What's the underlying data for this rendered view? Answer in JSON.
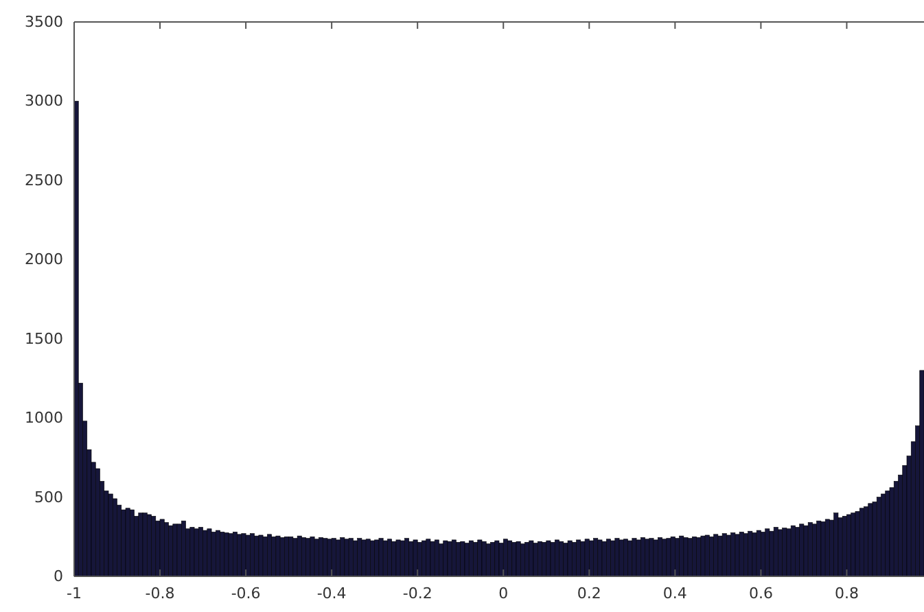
{
  "chart_data": {
    "type": "histogram",
    "color": "#16163a",
    "bins": [
      -1,
      -0.99,
      -0.98,
      -0.97,
      -0.96,
      -0.95,
      -0.94,
      -0.93,
      -0.92,
      -0.91,
      -0.9,
      -0.89,
      -0.88,
      -0.87,
      -0.86,
      -0.85,
      -0.84,
      -0.83,
      -0.82,
      -0.81,
      -0.8,
      -0.79,
      -0.78,
      -0.77,
      -0.76,
      -0.75,
      -0.74,
      -0.73,
      -0.72,
      -0.71,
      -0.7,
      -0.69,
      -0.68,
      -0.67,
      -0.66,
      -0.65,
      -0.64,
      -0.63,
      -0.62,
      -0.61,
      -0.6,
      -0.59,
      -0.58,
      -0.57,
      -0.56,
      -0.55,
      -0.54,
      -0.53,
      -0.52,
      -0.51,
      -0.5,
      -0.49,
      -0.48,
      -0.47,
      -0.46,
      -0.45,
      -0.44,
      -0.43,
      -0.42,
      -0.41,
      -0.4,
      -0.39,
      -0.38,
      -0.37,
      -0.36,
      -0.35,
      -0.34,
      -0.33,
      -0.32,
      -0.31,
      -0.3,
      -0.29,
      -0.28,
      -0.27,
      -0.26,
      -0.25,
      -0.24,
      -0.23,
      -0.22,
      -0.21,
      -0.2,
      -0.19,
      -0.18,
      -0.17,
      -0.16,
      -0.15,
      -0.14,
      -0.13,
      -0.12,
      -0.11,
      -0.1,
      -0.09,
      -0.08,
      -0.07,
      -0.06,
      -0.05,
      -0.04,
      -0.03,
      -0.02,
      -0.01,
      0,
      0.01,
      0.02,
      0.03,
      0.04,
      0.05,
      0.06,
      0.07,
      0.08,
      0.09,
      0.1,
      0.11,
      0.12,
      0.13,
      0.14,
      0.15,
      0.16,
      0.17,
      0.18,
      0.19,
      0.2,
      0.21,
      0.22,
      0.23,
      0.24,
      0.25,
      0.26,
      0.27,
      0.28,
      0.29,
      0.3,
      0.31,
      0.32,
      0.33,
      0.34,
      0.35,
      0.36,
      0.37,
      0.38,
      0.39,
      0.4,
      0.41,
      0.42,
      0.43,
      0.44,
      0.45,
      0.46,
      0.47,
      0.48,
      0.49,
      0.5,
      0.51,
      0.52,
      0.53,
      0.54,
      0.55,
      0.56,
      0.57,
      0.58,
      0.59,
      0.6,
      0.61,
      0.62,
      0.63,
      0.64,
      0.65,
      0.66,
      0.67,
      0.68,
      0.69,
      0.7,
      0.71,
      0.72,
      0.73,
      0.74,
      0.75,
      0.76,
      0.77,
      0.78,
      0.79,
      0.8,
      0.81,
      0.82,
      0.83,
      0.84,
      0.85,
      0.86,
      0.87,
      0.88,
      0.89,
      0.9,
      0.91,
      0.92,
      0.93,
      0.94,
      0.95,
      0.96,
      0.97,
      0.98
    ],
    "values": [
      3000,
      1220,
      980,
      800,
      720,
      680,
      600,
      540,
      520,
      490,
      450,
      420,
      430,
      420,
      380,
      400,
      400,
      390,
      380,
      350,
      360,
      340,
      320,
      330,
      330,
      350,
      300,
      310,
      300,
      310,
      290,
      300,
      280,
      290,
      280,
      275,
      270,
      280,
      265,
      270,
      260,
      270,
      255,
      260,
      250,
      265,
      250,
      255,
      245,
      250,
      250,
      240,
      255,
      245,
      240,
      250,
      235,
      245,
      240,
      235,
      240,
      230,
      245,
      235,
      240,
      225,
      240,
      230,
      235,
      225,
      230,
      240,
      225,
      235,
      220,
      230,
      225,
      240,
      220,
      230,
      215,
      225,
      235,
      220,
      230,
      205,
      225,
      220,
      230,
      215,
      220,
      210,
      225,
      215,
      230,
      220,
      205,
      215,
      225,
      210,
      235,
      225,
      215,
      220,
      205,
      215,
      225,
      210,
      220,
      215,
      225,
      215,
      230,
      220,
      210,
      225,
      215,
      230,
      220,
      235,
      225,
      240,
      230,
      220,
      235,
      225,
      240,
      230,
      235,
      225,
      240,
      230,
      245,
      235,
      240,
      230,
      245,
      235,
      240,
      250,
      240,
      255,
      245,
      240,
      250,
      245,
      255,
      260,
      250,
      265,
      255,
      270,
      260,
      275,
      265,
      280,
      270,
      285,
      275,
      290,
      280,
      300,
      285,
      310,
      295,
      305,
      300,
      320,
      310,
      330,
      320,
      340,
      330,
      350,
      345,
      360,
      355,
      400,
      370,
      380,
      390,
      400,
      410,
      430,
      440,
      460,
      470,
      500,
      520,
      540,
      560,
      600,
      640,
      700,
      760,
      850,
      950,
      1300
    ],
    "xlim": [
      -1,
      0.98
    ],
    "xticks": [
      -1,
      -0.8,
      -0.6,
      -0.4,
      -0.2,
      0,
      0.2,
      0.4,
      0.6,
      0.8
    ],
    "ylim": [
      0,
      3500
    ],
    "yticks": [
      0,
      500,
      1000,
      1500,
      2000,
      2500,
      3000,
      3500
    ],
    "grid": false
  }
}
